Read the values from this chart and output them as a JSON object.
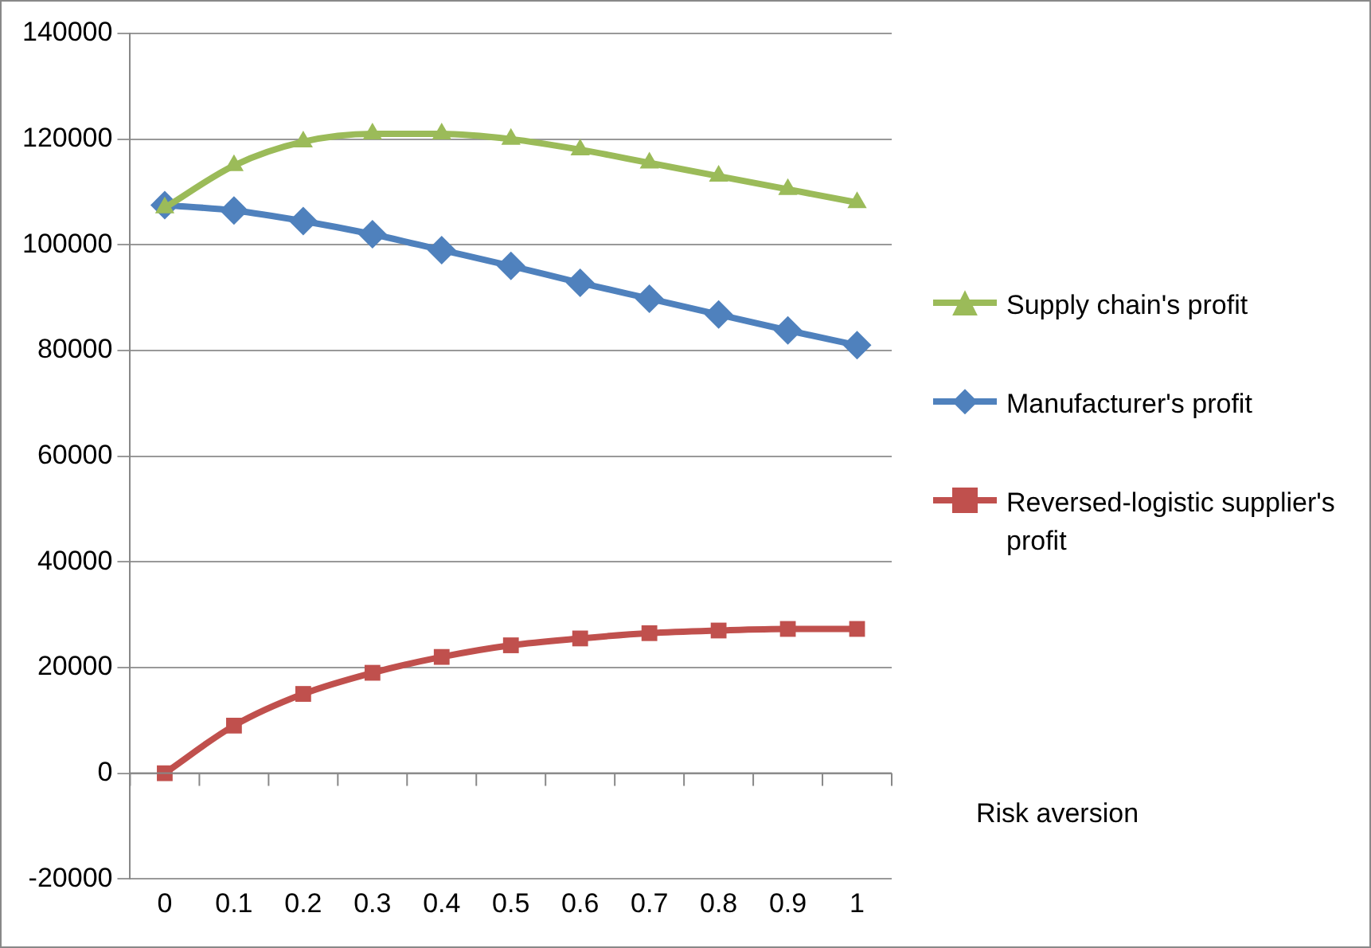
{
  "chart_data": {
    "type": "line",
    "xlabel": "Risk aversion",
    "categories": [
      "0",
      "0.1",
      "0.2",
      "0.3",
      "0.4",
      "0.5",
      "0.6",
      "0.7",
      "0.8",
      "0.9",
      "1"
    ],
    "series": [
      {
        "name": "Supply chain's profit",
        "color": "#9bbb59",
        "marker": "triangle",
        "values": [
          107000,
          115000,
          119500,
          121000,
          121000,
          120000,
          118000,
          115500,
          113000,
          110500,
          108000
        ]
      },
      {
        "name": "Manufacturer's profit",
        "color": "#4f81bd",
        "marker": "diamond",
        "values": [
          107500,
          106500,
          104500,
          102000,
          99000,
          96000,
          92800,
          89800,
          86800,
          83800,
          81000
        ]
      },
      {
        "name": "Reversed-logistic supplier's profit",
        "color": "#c0504d",
        "marker": "square",
        "values": [
          0,
          9000,
          15000,
          19000,
          22000,
          24200,
          25500,
          26500,
          27000,
          27300,
          27300
        ]
      }
    ],
    "ylim": [
      -20000,
      140000
    ],
    "yticks": [
      -20000,
      0,
      20000,
      40000,
      60000,
      80000,
      100000,
      120000,
      140000
    ],
    "grid": "y",
    "legend": "right"
  }
}
